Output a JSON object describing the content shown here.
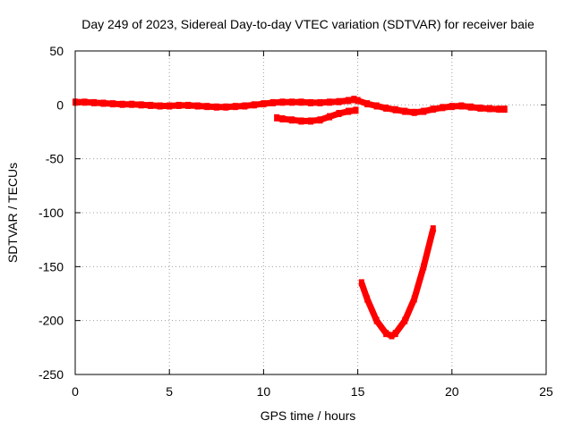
{
  "chart_data": {
    "type": "line",
    "title": "Day 249 of 2023, Sidereal Day-to-day VTEC variation (SDTVAR) for receiver baie",
    "xlabel": "GPS time / hours",
    "ylabel": "SDTVAR / TECUs",
    "xlim": [
      0,
      25
    ],
    "ylim": [
      -250,
      50
    ],
    "x_ticks": [
      0,
      5,
      10,
      15,
      20,
      25
    ],
    "y_ticks": [
      -250,
      -200,
      -150,
      -100,
      -50,
      0,
      50
    ],
    "x_tick_labels": [
      "0",
      "5",
      "10",
      "15",
      "20",
      "25"
    ],
    "y_tick_labels": [
      "-250",
      "-200",
      "-150",
      "-100",
      "-50",
      "0",
      "50"
    ],
    "grid": true,
    "legend": "none",
    "series_color": "#ff0000",
    "series": [
      {
        "points": [
          [
            0,
            2.5
          ],
          [
            0.5,
            2.5
          ],
          [
            1,
            2
          ],
          [
            1.5,
            1.5
          ],
          [
            2,
            1
          ],
          [
            2.5,
            0.5
          ],
          [
            3,
            0.5
          ],
          [
            3.5,
            0
          ],
          [
            4,
            -0.5
          ],
          [
            4.5,
            -1
          ],
          [
            5,
            -1
          ],
          [
            5.5,
            -0.5
          ],
          [
            6,
            -0.5
          ],
          [
            6.5,
            -1
          ],
          [
            7,
            -1.5
          ],
          [
            7.5,
            -2
          ],
          [
            8,
            -2
          ],
          [
            8.5,
            -1.5
          ],
          [
            9,
            -1
          ],
          [
            9.5,
            0
          ],
          [
            10,
            1
          ],
          [
            10.5,
            2
          ],
          [
            11,
            2.5
          ],
          [
            11.5,
            2.5
          ],
          [
            12,
            2.5
          ],
          [
            12.5,
            2
          ],
          [
            13,
            2
          ],
          [
            13.5,
            2.5
          ],
          [
            14,
            3
          ],
          [
            14.5,
            4
          ],
          [
            14.8,
            5
          ]
        ]
      },
      {
        "points": [
          [
            14.8,
            5
          ],
          [
            15,
            4
          ],
          [
            15.5,
            1
          ],
          [
            16,
            -1
          ],
          [
            16.5,
            -3
          ],
          [
            17,
            -4.5
          ],
          [
            17.5,
            -6
          ],
          [
            18,
            -7
          ],
          [
            18.5,
            -6
          ],
          [
            19,
            -4
          ],
          [
            19.5,
            -2.5
          ],
          [
            20,
            -1.5
          ],
          [
            20.5,
            -1
          ],
          [
            21,
            -2
          ],
          [
            21.5,
            -3
          ],
          [
            22,
            -3.5
          ],
          [
            22.5,
            -4
          ],
          [
            22.8,
            -4
          ]
        ]
      },
      {
        "points": [
          [
            10.7,
            -12
          ],
          [
            11,
            -13
          ],
          [
            11.5,
            -14
          ],
          [
            12,
            -15
          ],
          [
            12.5,
            -15
          ],
          [
            13,
            -14
          ],
          [
            13.5,
            -11
          ],
          [
            14,
            -8
          ],
          [
            14.5,
            -6
          ],
          [
            14.9,
            -5
          ]
        ]
      },
      {
        "points": [
          [
            15.2,
            -165
          ],
          [
            15.5,
            -180
          ],
          [
            16,
            -200
          ],
          [
            16.5,
            -212
          ],
          [
            16.8,
            -214
          ],
          [
            17,
            -212
          ],
          [
            17.5,
            -200
          ],
          [
            18,
            -180
          ],
          [
            18.5,
            -150
          ],
          [
            19,
            -115
          ]
        ]
      }
    ]
  }
}
